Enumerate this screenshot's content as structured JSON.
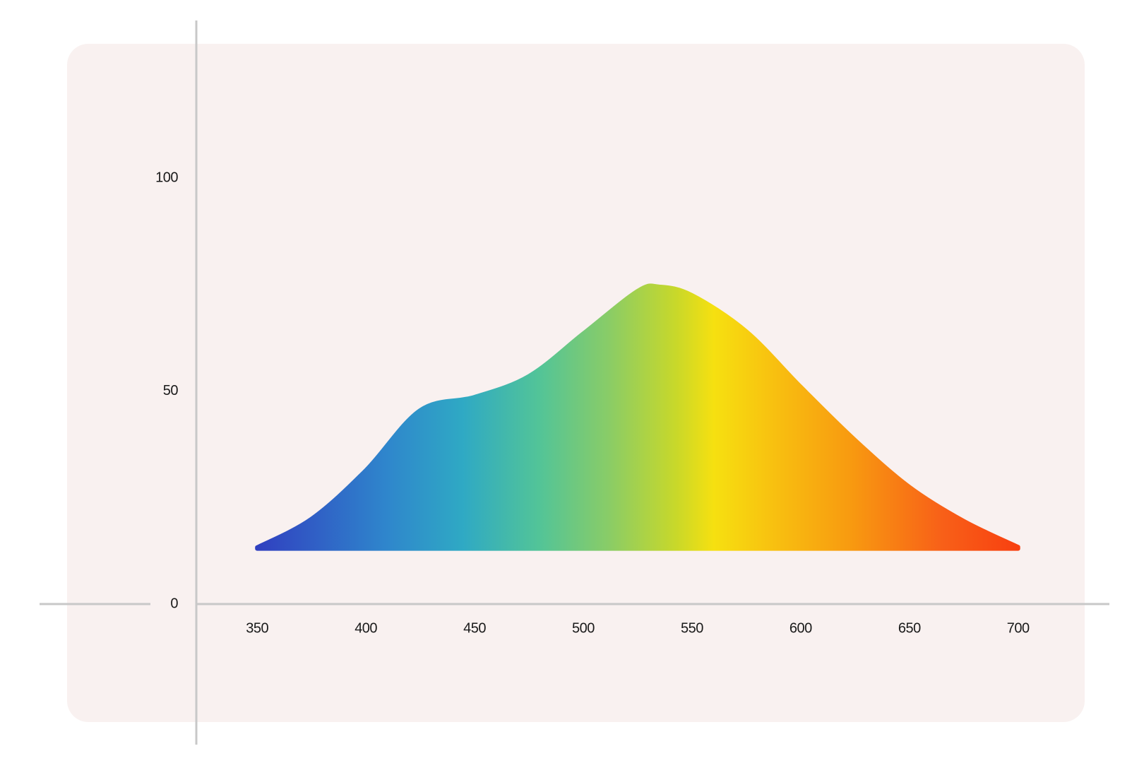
{
  "chart_data": {
    "type": "area",
    "x": [
      350,
      375,
      400,
      425,
      450,
      475,
      500,
      525,
      535,
      550,
      575,
      600,
      625,
      650,
      675,
      700
    ],
    "values": [
      13.3,
      20,
      31.4,
      45.5,
      48.6,
      53.5,
      63.5,
      73.5,
      74.5,
      72.5,
      64,
      51,
      38.5,
      27.5,
      19.5,
      13.4
    ],
    "baseline": 13,
    "xlim": [
      322,
      742
    ],
    "ylim": [
      -33,
      137
    ],
    "xticks": [
      350,
      400,
      450,
      500,
      550,
      600,
      650,
      700
    ],
    "yticks": [
      0,
      50,
      100
    ],
    "grid": false
  }
}
